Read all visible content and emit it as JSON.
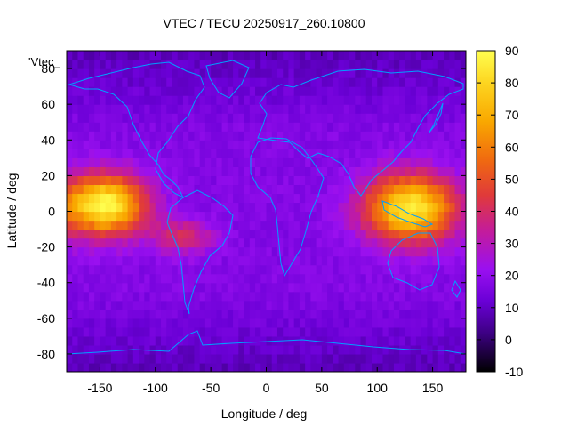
{
  "chart_data": {
    "type": "heatmap",
    "title": "VTEC / TECU 20250917_260.10800",
    "xlabel": "Longitude / deg",
    "ylabel": "Latitude / deg",
    "key_label": "'Vtec_",
    "xlim": [
      -180,
      180
    ],
    "ylim": [
      -90,
      90
    ],
    "x_ticks": [
      -150,
      -100,
      -50,
      0,
      50,
      100,
      150
    ],
    "y_ticks": [
      -80,
      -60,
      -40,
      -20,
      0,
      20,
      40,
      60,
      80
    ],
    "colorbar": {
      "range": [
        -10,
        90
      ],
      "ticks": [
        90,
        80,
        70,
        60,
        50,
        40,
        30,
        20,
        10,
        0,
        -10
      ],
      "palette": [
        "#000000",
        "#3d0083",
        "#6a00d6",
        "#9a10f0",
        "#c41c9a",
        "#e03a3a",
        "#f06a10",
        "#f9a800",
        "#fdd520",
        "#ffff50"
      ]
    },
    "grid_step_deg": 5,
    "field_description_values": {
      "background_tec": 18,
      "polar_tec": 8,
      "day_peak_center_lon": 130,
      "day_peak_max_tec": 85,
      "night_peak_center_lon": -145,
      "night_peak_max_tec": 88
    },
    "coastline_color": "#00a0ff"
  }
}
